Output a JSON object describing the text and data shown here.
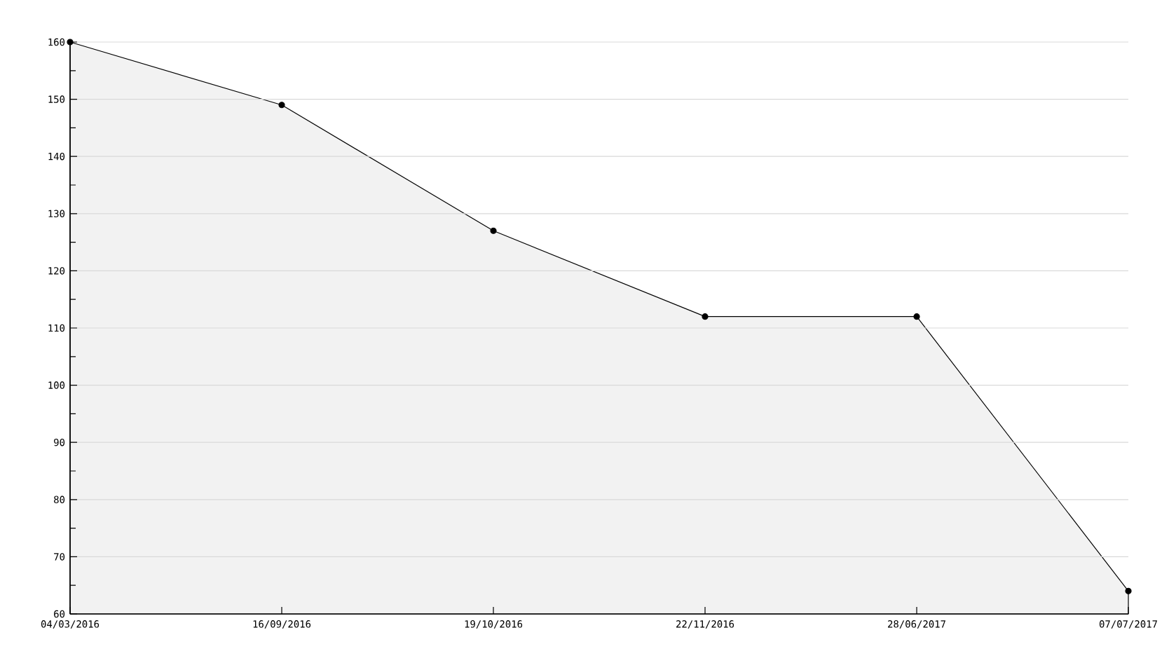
{
  "chart_data": {
    "type": "area",
    "categories": [
      "04/03/2016",
      "16/09/2016",
      "19/10/2016",
      "22/11/2016",
      "28/06/2017",
      "07/07/2017"
    ],
    "values": [
      160,
      149,
      127,
      112,
      112,
      64
    ],
    "color": "#f2f2f2",
    "ylim": [
      60,
      160
    ],
    "yticks": [
      60,
      {
        "value": 65,
        "label": null
      },
      70,
      {
        "value": 75,
        "label": null
      },
      80,
      {
        "value": 85,
        "label": null
      },
      90,
      {
        "value": 95,
        "label": null
      },
      100,
      {
        "value": 105,
        "label": null
      },
      110,
      {
        "value": 115,
        "label": null
      },
      120,
      {
        "value": 125,
        "label": null
      },
      130,
      {
        "value": 135,
        "label": null
      },
      140,
      {
        "value": 145,
        "label": null
      },
      150,
      {
        "value": 155,
        "label": null
      },
      160
    ],
    "grid": "y",
    "marker": "circle",
    "line_style": "solid"
  }
}
